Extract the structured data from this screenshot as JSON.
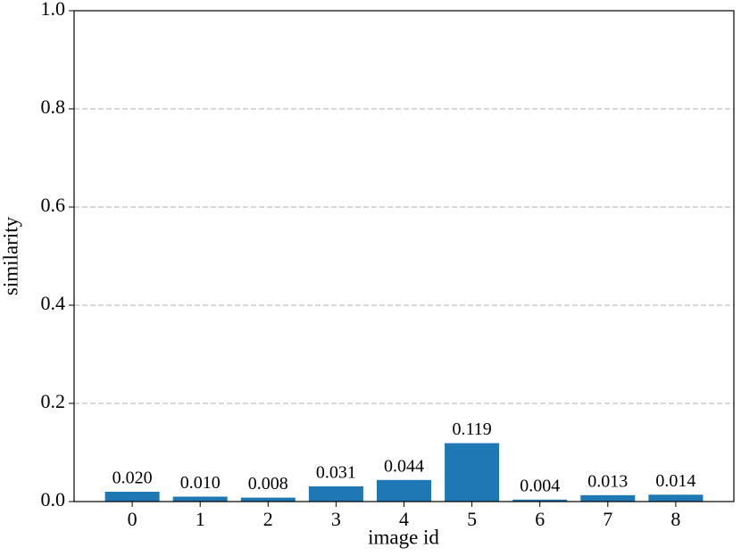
{
  "chart_data": {
    "type": "bar",
    "x_label": "image id",
    "y_label": "similarity",
    "categories": [
      "0",
      "1",
      "2",
      "3",
      "4",
      "5",
      "6",
      "7",
      "8"
    ],
    "values": [
      0.02,
      0.01,
      0.008,
      0.031,
      0.044,
      0.119,
      0.004,
      0.013,
      0.014
    ],
    "value_labels": [
      "0.020",
      "0.010",
      "0.008",
      "0.031",
      "0.044",
      "0.119",
      "0.004",
      "0.013",
      "0.014"
    ],
    "color": "#1f77b4",
    "ylim": [
      0,
      1
    ],
    "yticks": [
      {
        "value": 0,
        "label": "0.0"
      },
      0.2,
      0.4,
      0.6,
      0.8,
      {
        "value": 1,
        "label": "1.0"
      }
    ],
    "grid": true
  }
}
